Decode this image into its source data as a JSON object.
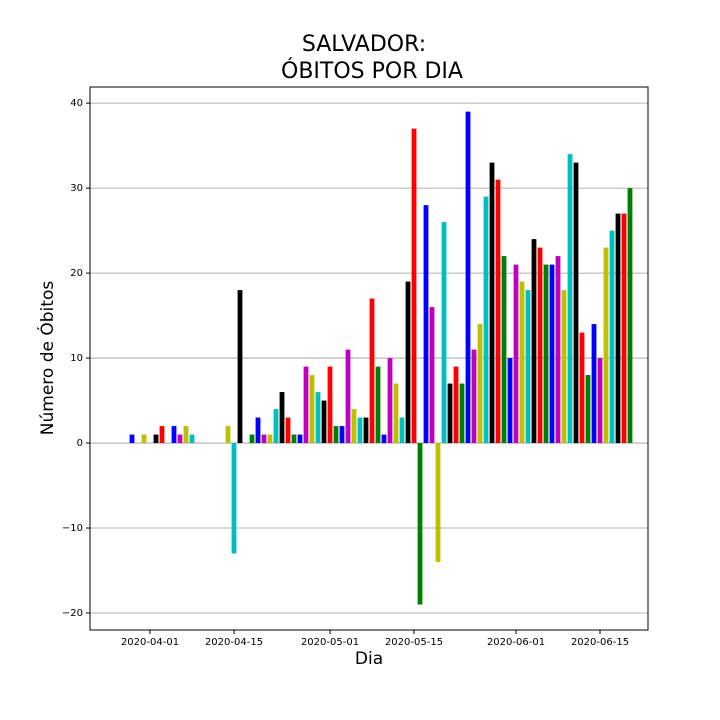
{
  "chart_data": {
    "type": "bar",
    "title": [
      "SALVADOR:",
      "ÓBITOS POR DIA"
    ],
    "xlabel": "Dia",
    "ylabel": "Número de Óbitos",
    "x_start": "2020-03-29",
    "values": [
      1,
      0,
      1,
      0,
      1,
      2,
      0,
      2,
      1,
      2,
      1,
      0,
      0,
      0,
      0,
      0,
      2,
      -13,
      18,
      0,
      1,
      3,
      1,
      1,
      4,
      6,
      3,
      1,
      1,
      9,
      8,
      6,
      5,
      9,
      2,
      2,
      11,
      4,
      3,
      3,
      17,
      9,
      1,
      10,
      7,
      3,
      19,
      37,
      -19,
      28,
      16,
      -14,
      26,
      7,
      9,
      7,
      39,
      11,
      14,
      29,
      33,
      31,
      22,
      10,
      21,
      19,
      18,
      24,
      23,
      21,
      21,
      22,
      18,
      34,
      33,
      13,
      8,
      14,
      10,
      23,
      25,
      27,
      27,
      30
    ],
    "color_cycle": [
      "#0000ff",
      "#bf00bf",
      "#bfbf00",
      "#00bfbf",
      "#000000",
      "#ff0000",
      "#008000"
    ],
    "xlim": [
      "2020-03-22",
      "2020-06-23"
    ],
    "xticks": [
      "2020-04-01",
      "2020-04-15",
      "2020-05-01",
      "2020-05-15",
      "2020-06-01",
      "2020-06-15"
    ],
    "ylim": [
      -22,
      41.9
    ],
    "yticks": [
      {
        "value": -20,
        "label": "−20"
      },
      {
        "value": -10,
        "label": "−10"
      },
      0,
      10,
      20,
      30,
      40
    ],
    "grid": true
  }
}
